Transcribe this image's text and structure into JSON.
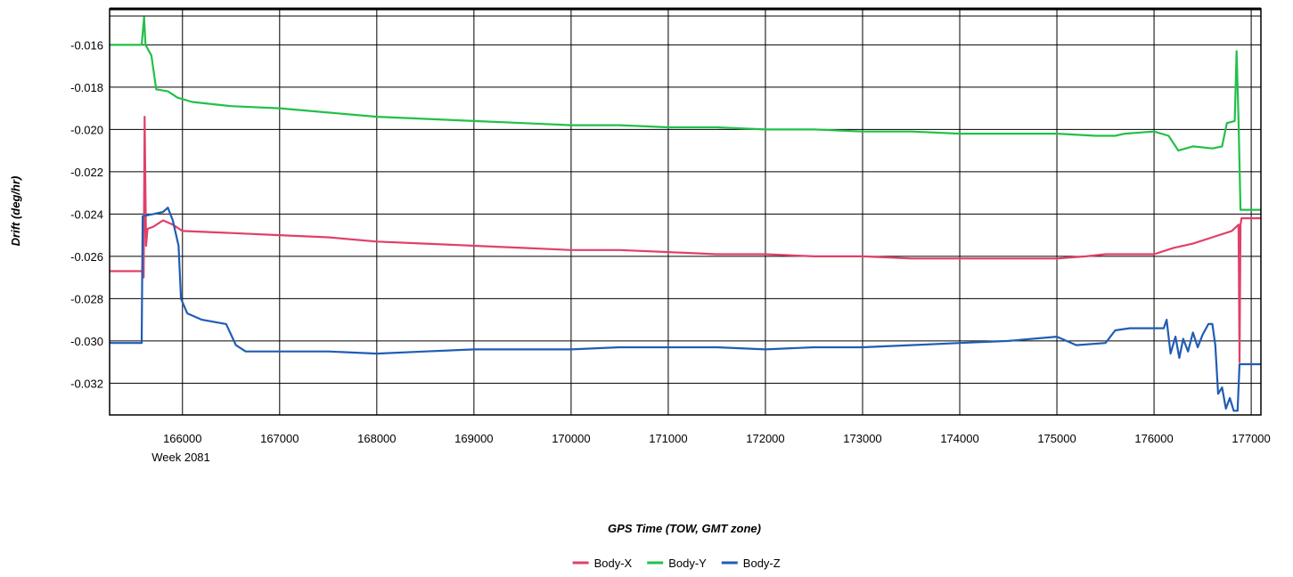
{
  "chart_data": {
    "type": "line",
    "title": "",
    "xlabel": "GPS Time (TOW, GMT zone)",
    "ylabel": "Drift (deg/hr)",
    "x_sublabel": "Week 2081",
    "xlim": [
      165250,
      177100
    ],
    "ylim": [
      -0.0335,
      -0.0143
    ],
    "x_ticks": [
      166000,
      167000,
      168000,
      169000,
      170000,
      171000,
      172000,
      173000,
      174000,
      175000,
      176000,
      177000
    ],
    "y_ticks": [
      -0.016,
      -0.018,
      -0.02,
      -0.022,
      -0.024,
      -0.026,
      -0.028,
      -0.03,
      -0.032
    ],
    "y_tick_labels": [
      "-0.016",
      "-0.018",
      "-0.020",
      "-0.022",
      "-0.024",
      "-0.026",
      "-0.028",
      "-0.030",
      "-0.032"
    ],
    "grid": true,
    "legend_position": "bottom-center",
    "series": [
      {
        "name": "Body-X",
        "color": "#e0406a",
        "points": [
          [
            165250,
            -0.0267
          ],
          [
            165590,
            -0.0267
          ],
          [
            165600,
            -0.027
          ],
          [
            165610,
            -0.0194
          ],
          [
            165625,
            -0.0255
          ],
          [
            165640,
            -0.0247
          ],
          [
            165700,
            -0.0246
          ],
          [
            165800,
            -0.0243
          ],
          [
            165900,
            -0.0245
          ],
          [
            166000,
            -0.0248
          ],
          [
            166500,
            -0.0249
          ],
          [
            167000,
            -0.025
          ],
          [
            167500,
            -0.0251
          ],
          [
            168000,
            -0.0253
          ],
          [
            168500,
            -0.0254
          ],
          [
            169000,
            -0.0255
          ],
          [
            169500,
            -0.0256
          ],
          [
            170000,
            -0.0257
          ],
          [
            170500,
            -0.0257
          ],
          [
            171000,
            -0.0258
          ],
          [
            171500,
            -0.0259
          ],
          [
            172000,
            -0.0259
          ],
          [
            172500,
            -0.026
          ],
          [
            173000,
            -0.026
          ],
          [
            173500,
            -0.0261
          ],
          [
            174000,
            -0.0261
          ],
          [
            174500,
            -0.0261
          ],
          [
            175000,
            -0.0261
          ],
          [
            175300,
            -0.026
          ],
          [
            175500,
            -0.0259
          ],
          [
            176000,
            -0.0259
          ],
          [
            176200,
            -0.0256
          ],
          [
            176400,
            -0.0254
          ],
          [
            176600,
            -0.0251
          ],
          [
            176800,
            -0.0248
          ],
          [
            176870,
            -0.0245
          ],
          [
            176880,
            -0.031
          ],
          [
            176890,
            -0.0245
          ],
          [
            176900,
            -0.0242
          ],
          [
            177100,
            -0.0242
          ]
        ]
      },
      {
        "name": "Body-Y",
        "color": "#22c04a",
        "points": [
          [
            165250,
            -0.016
          ],
          [
            165580,
            -0.016
          ],
          [
            165605,
            -0.0147
          ],
          [
            165620,
            -0.016
          ],
          [
            165680,
            -0.0165
          ],
          [
            165730,
            -0.0181
          ],
          [
            165850,
            -0.0182
          ],
          [
            165950,
            -0.0185
          ],
          [
            166100,
            -0.0187
          ],
          [
            166500,
            -0.0189
          ],
          [
            167000,
            -0.019
          ],
          [
            167500,
            -0.0192
          ],
          [
            168000,
            -0.0194
          ],
          [
            168500,
            -0.0195
          ],
          [
            169000,
            -0.0196
          ],
          [
            169500,
            -0.0197
          ],
          [
            170000,
            -0.0198
          ],
          [
            170500,
            -0.0198
          ],
          [
            171000,
            -0.0199
          ],
          [
            171500,
            -0.0199
          ],
          [
            172000,
            -0.02
          ],
          [
            172500,
            -0.02
          ],
          [
            173000,
            -0.0201
          ],
          [
            173500,
            -0.0201
          ],
          [
            174000,
            -0.0202
          ],
          [
            174500,
            -0.0202
          ],
          [
            175000,
            -0.0202
          ],
          [
            175400,
            -0.0203
          ],
          [
            175600,
            -0.0203
          ],
          [
            175700,
            -0.0202
          ],
          [
            176000,
            -0.0201
          ],
          [
            176150,
            -0.0203
          ],
          [
            176250,
            -0.021
          ],
          [
            176400,
            -0.0208
          ],
          [
            176600,
            -0.0209
          ],
          [
            176700,
            -0.0208
          ],
          [
            176750,
            -0.0197
          ],
          [
            176830,
            -0.0196
          ],
          [
            176850,
            -0.0163
          ],
          [
            176870,
            -0.0196
          ],
          [
            176890,
            -0.0238
          ],
          [
            177100,
            -0.0238
          ]
        ]
      },
      {
        "name": "Body-Z",
        "color": "#1f5db5",
        "points": [
          [
            165250,
            -0.0301
          ],
          [
            165580,
            -0.0301
          ],
          [
            165590,
            -0.0241
          ],
          [
            165700,
            -0.024
          ],
          [
            165800,
            -0.0239
          ],
          [
            165850,
            -0.0237
          ],
          [
            165900,
            -0.0243
          ],
          [
            165960,
            -0.0255
          ],
          [
            165985,
            -0.028
          ],
          [
            166050,
            -0.0287
          ],
          [
            166200,
            -0.029
          ],
          [
            166450,
            -0.0292
          ],
          [
            166550,
            -0.0302
          ],
          [
            166650,
            -0.0305
          ],
          [
            167000,
            -0.0305
          ],
          [
            167500,
            -0.0305
          ],
          [
            168000,
            -0.0306
          ],
          [
            168500,
            -0.0305
          ],
          [
            169000,
            -0.0304
          ],
          [
            169500,
            -0.0304
          ],
          [
            170000,
            -0.0304
          ],
          [
            170500,
            -0.0303
          ],
          [
            171000,
            -0.0303
          ],
          [
            171500,
            -0.0303
          ],
          [
            172000,
            -0.0304
          ],
          [
            172500,
            -0.0303
          ],
          [
            173000,
            -0.0303
          ],
          [
            173500,
            -0.0302
          ],
          [
            174000,
            -0.0301
          ],
          [
            174500,
            -0.03
          ],
          [
            175000,
            -0.0298
          ],
          [
            175200,
            -0.0302
          ],
          [
            175500,
            -0.0301
          ],
          [
            175600,
            -0.0295
          ],
          [
            175750,
            -0.0294
          ],
          [
            176100,
            -0.0294
          ],
          [
            176130,
            -0.029
          ],
          [
            176170,
            -0.0306
          ],
          [
            176220,
            -0.0298
          ],
          [
            176260,
            -0.0308
          ],
          [
            176300,
            -0.0299
          ],
          [
            176350,
            -0.0305
          ],
          [
            176400,
            -0.0296
          ],
          [
            176450,
            -0.0303
          ],
          [
            176500,
            -0.0297
          ],
          [
            176560,
            -0.0292
          ],
          [
            176600,
            -0.0292
          ],
          [
            176630,
            -0.0302
          ],
          [
            176660,
            -0.0325
          ],
          [
            176700,
            -0.0322
          ],
          [
            176740,
            -0.0332
          ],
          [
            176780,
            -0.0327
          ],
          [
            176820,
            -0.0333
          ],
          [
            176860,
            -0.0333
          ],
          [
            176880,
            -0.0311
          ],
          [
            177100,
            -0.0311
          ]
        ]
      }
    ]
  }
}
